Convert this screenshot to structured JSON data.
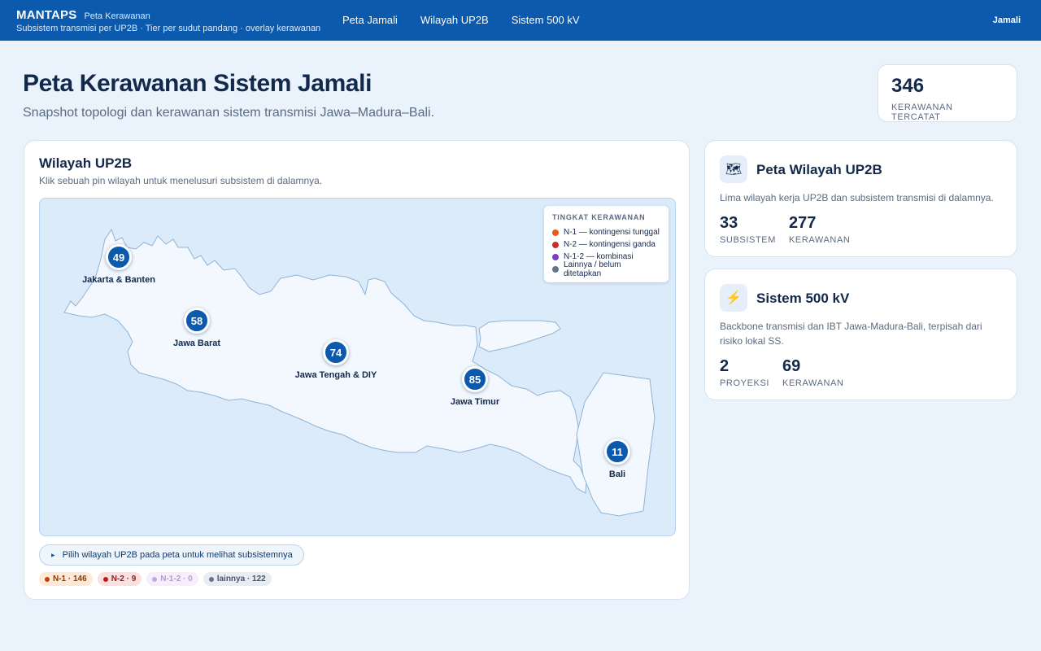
{
  "app": {
    "name": "MANTAPS",
    "tagline": "Peta Kerawanan",
    "subtitle": "Subsistem transmisi per UP2B · Tier per sudut pandang · overlay kerawanan"
  },
  "nav": [
    {
      "label": "Peta Jamali"
    },
    {
      "label": "Wilayah UP2B"
    },
    {
      "label": "Sistem 500 kV"
    }
  ],
  "user": {
    "label": "Jamali"
  },
  "header": {
    "title": "Peta Kerawanan Sistem Jamali",
    "subtitle": "Snapshot topologi dan kerawanan sistem transmisi Jawa–Madura–Bali."
  },
  "stat": {
    "value": "346",
    "label": "KERAWANAN TERCATAT"
  },
  "map_card": {
    "title": "Wilayah UP2B",
    "description": "Klik sebuah pin wilayah untuk menelusuri subsistem di dalamnya.",
    "legend": {
      "title": "TINGKAT KERAWANAN",
      "items": [
        {
          "label": "N-1 — kontingensi tunggal",
          "color": "#e8591a"
        },
        {
          "label": "N-2 — kontingensi ganda",
          "color": "#cc2b2b"
        },
        {
          "label": "N-1-2 — kombinasi",
          "color": "#7b3fc6"
        },
        {
          "label": "Lainnya / belum ditetapkan",
          "color": "#64748b"
        }
      ]
    },
    "regions": [
      {
        "name": "Jakarta & Banten",
        "count": "49"
      },
      {
        "name": "Jawa Barat",
        "count": "58"
      },
      {
        "name": "Jawa Tengah & DIY",
        "count": "74"
      },
      {
        "name": "Jawa Timur",
        "count": "85"
      },
      {
        "name": "Bali",
        "count": "11"
      }
    ],
    "hint": "Pilih wilayah UP2B pada peta untuk melihat subsistemnya",
    "hint_icon": "caret-right-icon",
    "chips": [
      {
        "label": "N-1 · 146",
        "color": "#8a3a06",
        "bg": "#fde9d6",
        "dot": "#c2410c"
      },
      {
        "label": "N-2 · 9",
        "color": "#8c1c1c",
        "bg": "#fbe0e0",
        "dot": "#b91c1c"
      },
      {
        "label": "N-1-2 · 0",
        "color": "#b89ad8",
        "bg": "#f4effb",
        "dot": "#c4a8e6"
      },
      {
        "label": "lainnya · 122",
        "color": "#475569",
        "bg": "#e8edf3",
        "dot": "#64748b"
      }
    ]
  },
  "side_cards": [
    {
      "icon": "map-icon",
      "icon_glyph": "🗺",
      "title": "Peta Wilayah UP2B",
      "description": "Lima wilayah kerja UP2B dan subsistem transmisi di dalamnya.",
      "stats": [
        {
          "value": "33",
          "label": "SUBSISTEM"
        },
        {
          "value": "277",
          "label": "KERAWANAN"
        }
      ]
    },
    {
      "icon": "lightning-icon",
      "icon_glyph": "⚡",
      "title": "Sistem 500 kV",
      "description": "Backbone transmisi dan IBT Jawa-Madura-Bali, terpisah dari risiko lokal SS.",
      "stats": [
        {
          "value": "2",
          "label": "PROYEKSI"
        },
        {
          "value": "69",
          "label": "KERAWANAN"
        }
      ]
    }
  ]
}
